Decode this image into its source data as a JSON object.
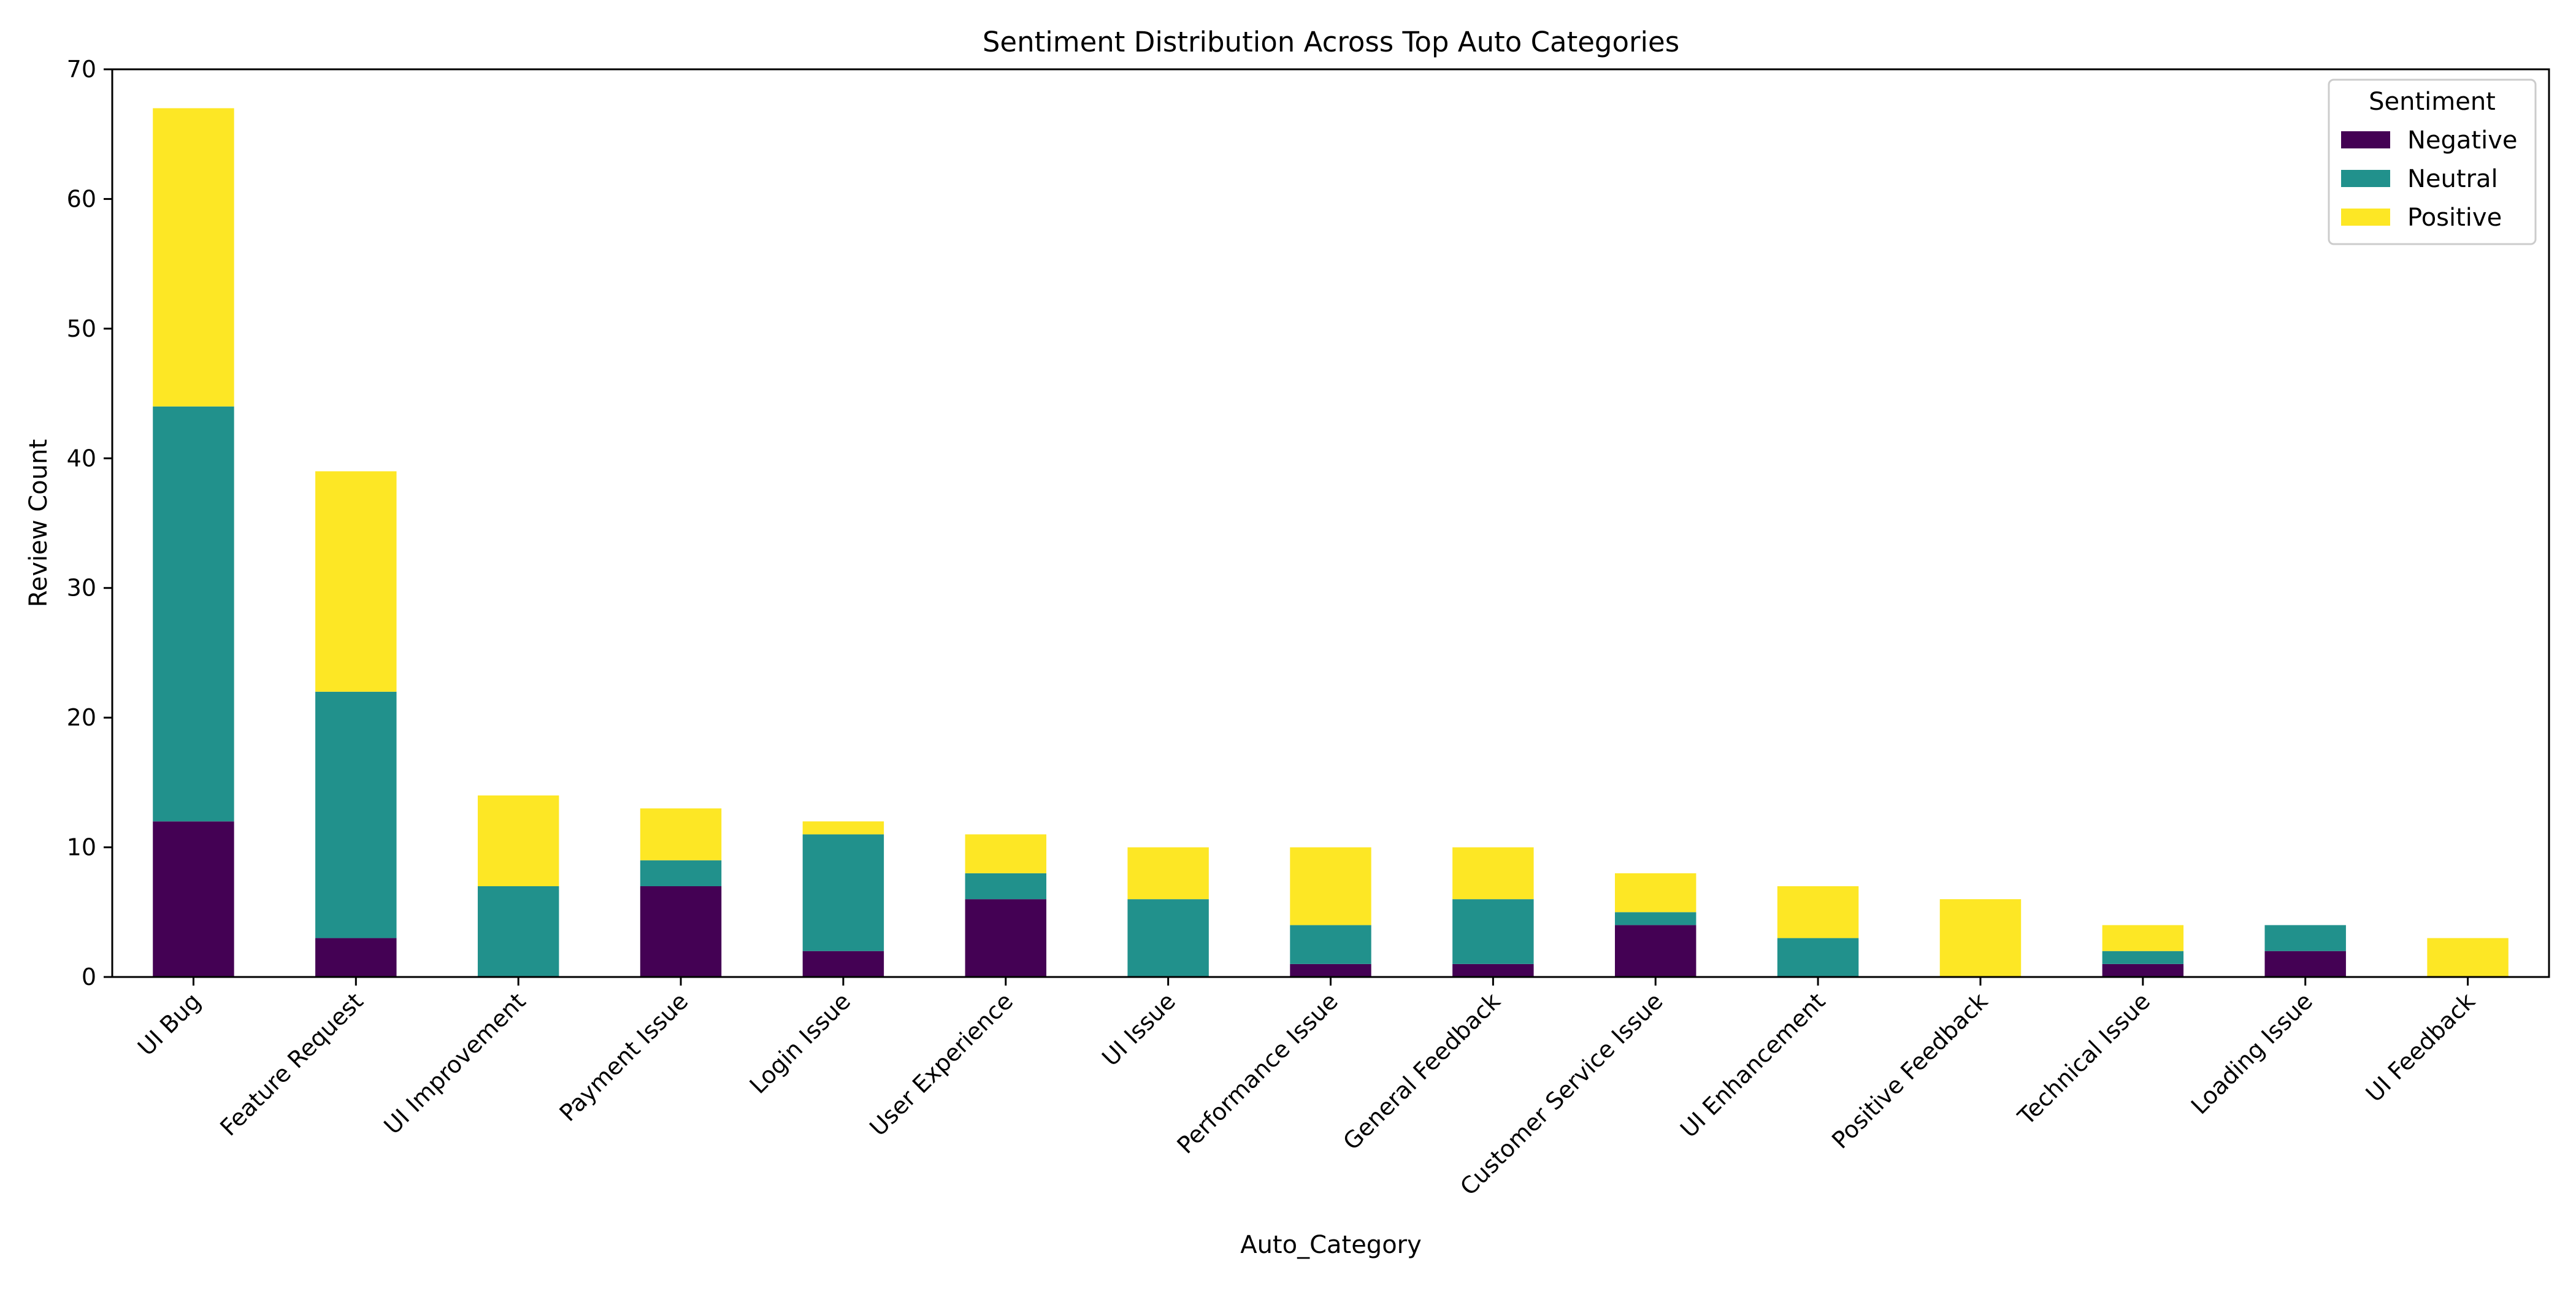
{
  "chart_data": {
    "type": "bar",
    "stacked": true,
    "title": "Sentiment Distribution Across Top Auto Categories",
    "xlabel": "Auto_Category",
    "ylabel": "Review Count",
    "ylim": [
      0,
      70
    ],
    "yticks": [
      0,
      10,
      20,
      30,
      40,
      50,
      60,
      70
    ],
    "grid": false,
    "legend": {
      "title": "Sentiment",
      "position": "top-right"
    },
    "categories": [
      "UI Bug",
      "Feature Request",
      "UI Improvement",
      "Payment Issue",
      "Login Issue",
      "User Experience",
      "UI Issue",
      "Performance Issue",
      "General Feedback",
      "Customer Service Issue",
      "UI Enhancement",
      "Positive Feedback",
      "Technical Issue",
      "Loading Issue",
      "UI Feedback"
    ],
    "series": [
      {
        "name": "Negative",
        "color": "#440154",
        "values": [
          12,
          3,
          0,
          7,
          2,
          6,
          0,
          1,
          1,
          4,
          0,
          0,
          1,
          2,
          0
        ]
      },
      {
        "name": "Neutral",
        "color": "#21918c",
        "values": [
          32,
          19,
          7,
          2,
          9,
          2,
          6,
          3,
          5,
          1,
          3,
          0,
          1,
          2,
          0
        ]
      },
      {
        "name": "Positive",
        "color": "#fde725",
        "values": [
          23,
          17,
          7,
          4,
          1,
          3,
          4,
          6,
          4,
          3,
          4,
          6,
          2,
          0,
          3
        ]
      }
    ]
  }
}
